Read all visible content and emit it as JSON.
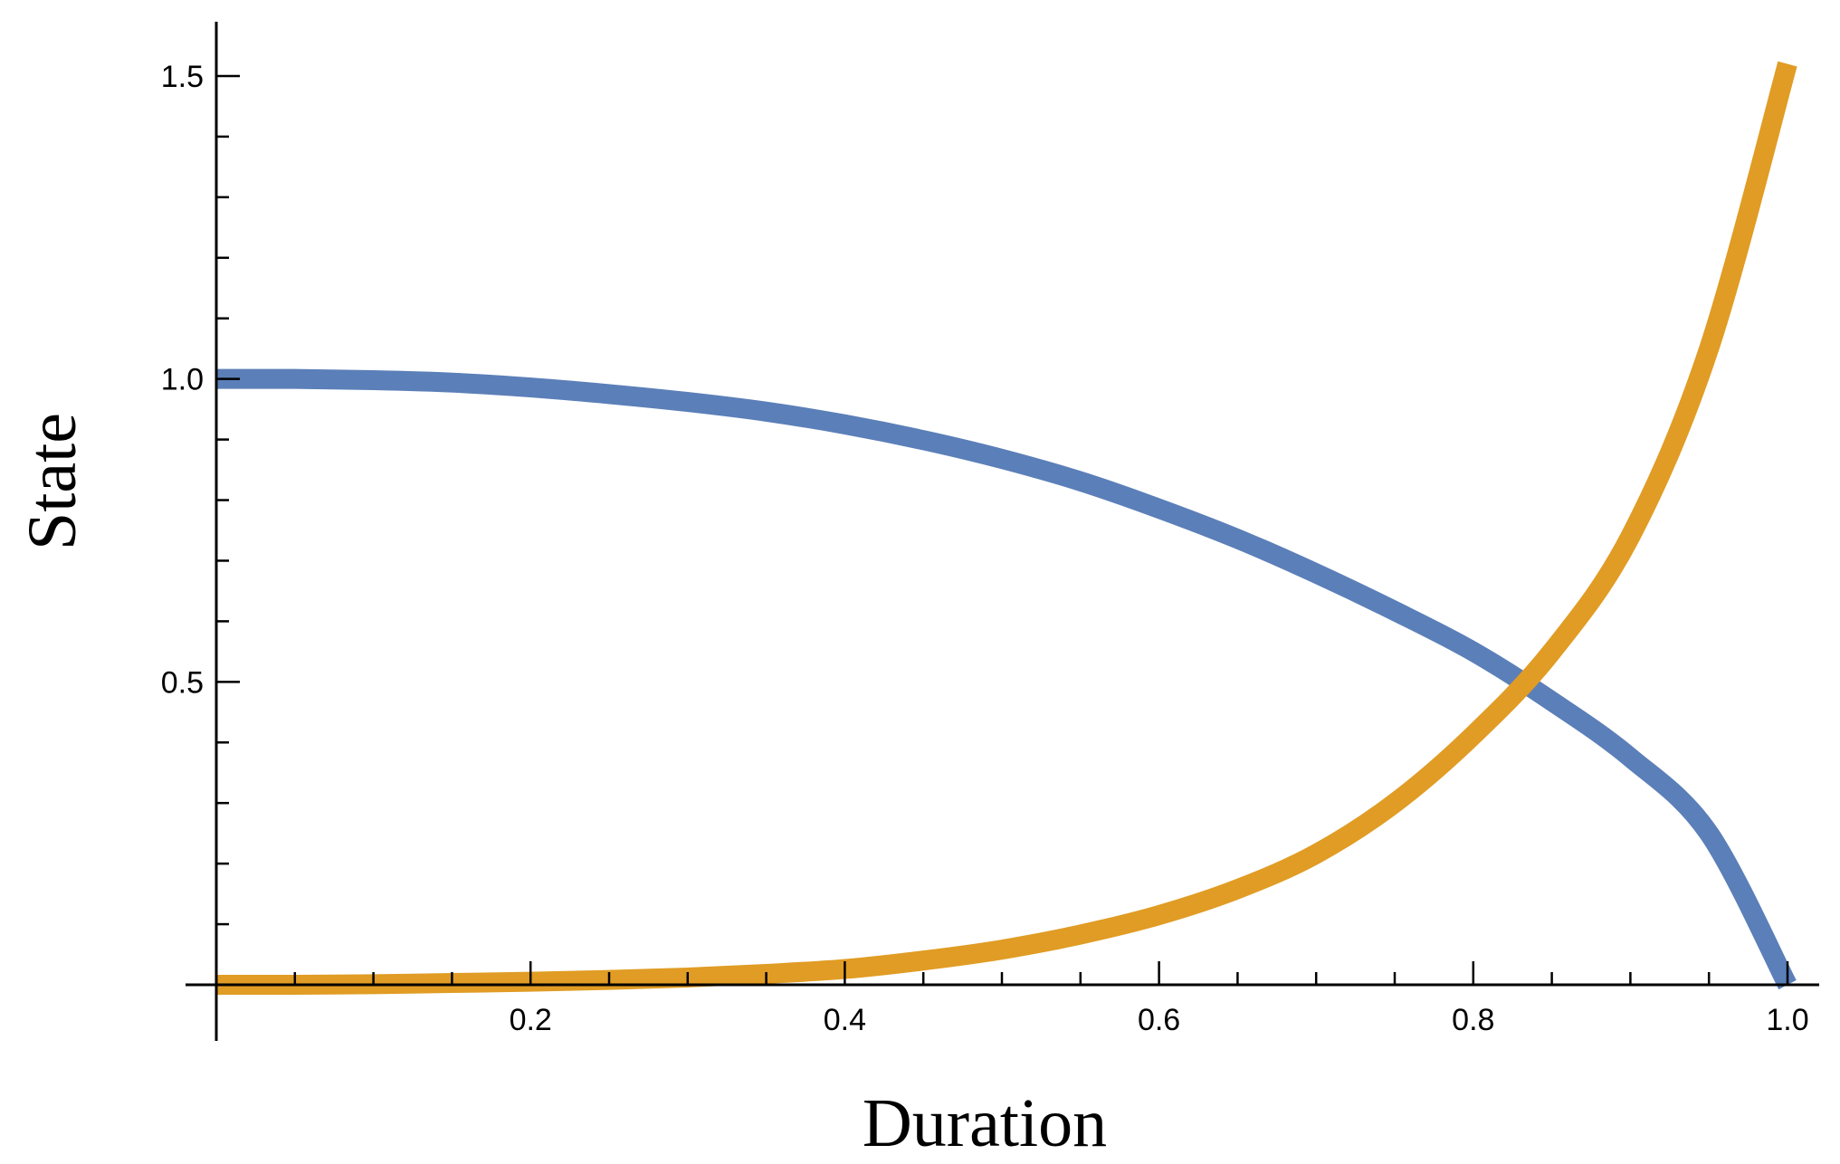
{
  "chart_data": {
    "type": "line",
    "xlabel": "Duration",
    "ylabel": "State",
    "xlim": [
      0,
      1.0
    ],
    "ylim": [
      0,
      1.5
    ],
    "x_ticks": [
      0.2,
      0.4,
      0.6,
      0.8,
      1.0
    ],
    "x_tick_labels": [
      "0.2",
      "0.4",
      "0.6",
      "0.8",
      "1.0"
    ],
    "y_ticks": [
      0.5,
      1.0,
      1.5
    ],
    "y_tick_labels": [
      "0.5",
      "1.0",
      "1.5"
    ],
    "grid": false,
    "legend": "none",
    "series": [
      {
        "color": "#5b7fb8",
        "x": [
          0,
          0.05,
          0.1,
          0.15,
          0.2,
          0.25,
          0.3,
          0.35,
          0.4,
          0.45,
          0.5,
          0.55,
          0.6,
          0.65,
          0.7,
          0.75,
          0.8,
          0.85,
          0.9,
          0.95,
          1.0
        ],
        "values": [
          1.0,
          1.0,
          0.998,
          0.994,
          0.986,
          0.975,
          0.962,
          0.946,
          0.925,
          0.899,
          0.868,
          0.831,
          0.786,
          0.736,
          0.679,
          0.617,
          0.55,
          0.468,
          0.375,
          0.25,
          0.0
        ]
      },
      {
        "color": "#e09c24",
        "x": [
          0,
          0.05,
          0.1,
          0.15,
          0.2,
          0.25,
          0.3,
          0.35,
          0.4,
          0.45,
          0.5,
          0.55,
          0.6,
          0.65,
          0.7,
          0.75,
          0.8,
          0.85,
          0.9,
          0.95,
          1.0
        ],
        "values": [
          0.0,
          0.0,
          0.001,
          0.003,
          0.005,
          0.008,
          0.012,
          0.018,
          0.026,
          0.04,
          0.058,
          0.083,
          0.115,
          0.158,
          0.216,
          0.3,
          0.412,
          0.55,
          0.74,
          1.05,
          1.52
        ]
      }
    ]
  }
}
